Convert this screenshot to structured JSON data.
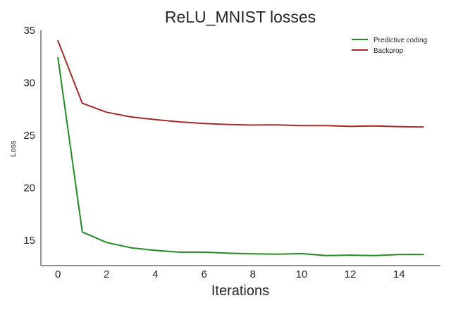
{
  "chart_data": {
    "type": "line",
    "title": "ReLU_MNIST losses",
    "xlabel": "Iterations",
    "ylabel": "Loss",
    "xlim": [
      -0.7,
      15.7
    ],
    "ylim": [
      12.6,
      35
    ],
    "xticks": [
      0,
      2,
      4,
      6,
      8,
      10,
      12,
      14
    ],
    "yticks": [
      15,
      20,
      25,
      30,
      35
    ],
    "grid": false,
    "legend_position": "top-right",
    "x": [
      0,
      1,
      2,
      3,
      4,
      5,
      6,
      7,
      8,
      9,
      10,
      11,
      12,
      13,
      14,
      15
    ],
    "series": [
      {
        "name": "Predictive coding",
        "color": "#228b22",
        "values": [
          32.4,
          15.8,
          14.8,
          14.3,
          14.05,
          13.88,
          13.88,
          13.78,
          13.72,
          13.69,
          13.75,
          13.55,
          13.6,
          13.55,
          13.65,
          13.65
        ]
      },
      {
        "name": "Backprop",
        "color": "#a52a2a",
        "values": [
          34.0,
          28.05,
          27.2,
          26.75,
          26.5,
          26.28,
          26.13,
          26.03,
          25.98,
          26.0,
          25.93,
          25.93,
          25.85,
          25.9,
          25.83,
          25.8
        ]
      }
    ]
  }
}
